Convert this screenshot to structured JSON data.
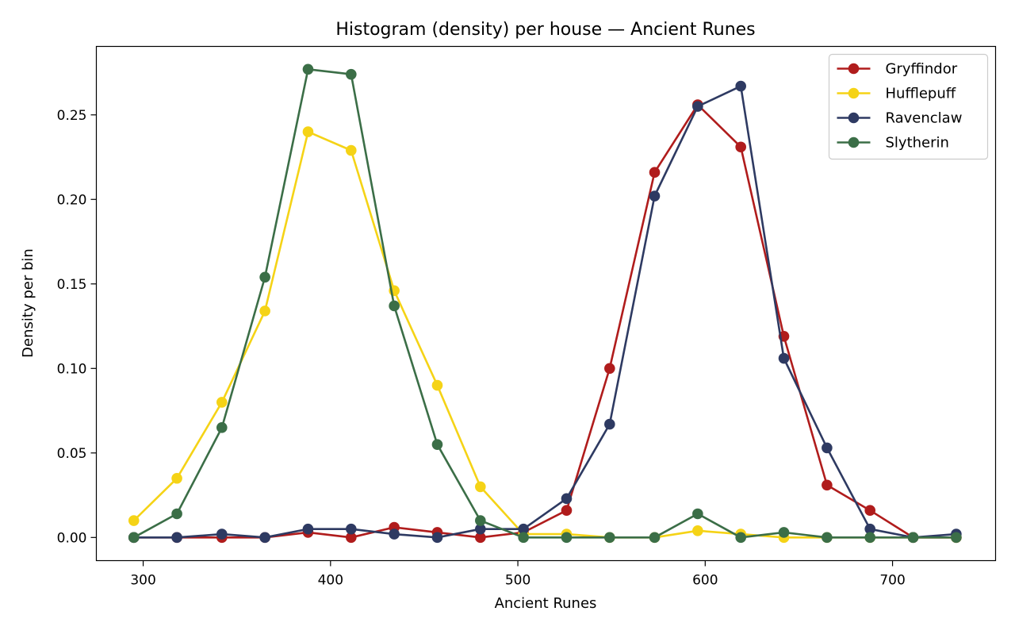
{
  "chart_data": {
    "type": "line",
    "title": "Histogram (density) per house — Ancient Runes",
    "xlabel": "Ancient Runes",
    "ylabel": "Density per bin",
    "xlim": [
      275,
      755
    ],
    "ylim": [
      -0.0137,
      0.2905
    ],
    "xticks": [
      300,
      400,
      500,
      600,
      700
    ],
    "yticks": [
      0.0,
      0.05,
      0.1,
      0.15,
      0.2,
      0.25
    ],
    "ytick_labels": [
      "0.00",
      "0.05",
      "0.10",
      "0.15",
      "0.20",
      "0.25"
    ],
    "xtick_labels": [
      "300",
      "400",
      "500",
      "600",
      "700"
    ],
    "grid": false,
    "legend_position": "top-right",
    "x": [
      295,
      318,
      342,
      365,
      388,
      411,
      434,
      457,
      480,
      503,
      526,
      549,
      573,
      596,
      619,
      642,
      665,
      688,
      711,
      734
    ],
    "series": [
      {
        "name": "Gryffindor",
        "color": "#b01c1c",
        "values": [
          0.0,
          0.0,
          0.0,
          0.0,
          0.003,
          0.0,
          0.006,
          0.003,
          0.0,
          0.003,
          0.016,
          0.1,
          0.216,
          0.256,
          0.231,
          0.119,
          0.031,
          0.016,
          0.0,
          0.0
        ]
      },
      {
        "name": "Hufflepuff",
        "color": "#f5d316",
        "values": [
          0.01,
          0.035,
          0.08,
          0.134,
          0.24,
          0.229,
          0.146,
          0.09,
          0.03,
          0.002,
          0.002,
          0.0,
          0.0,
          0.004,
          0.002,
          0.0,
          0.0,
          0.0,
          0.0,
          0.0
        ]
      },
      {
        "name": "Ravenclaw",
        "color": "#2e3a62",
        "values": [
          0.0,
          0.0,
          0.002,
          0.0,
          0.005,
          0.005,
          0.002,
          0.0,
          0.005,
          0.005,
          0.023,
          0.067,
          0.202,
          0.255,
          0.267,
          0.106,
          0.053,
          0.005,
          0.0,
          0.002
        ]
      },
      {
        "name": "Slytherin",
        "color": "#3b6e47",
        "values": [
          0.0,
          0.014,
          0.065,
          0.154,
          0.277,
          0.274,
          0.137,
          0.055,
          0.01,
          0.0,
          0.0,
          0.0,
          0.0,
          0.014,
          0.0,
          0.003,
          0.0,
          0.0,
          0.0,
          0.0
        ]
      }
    ]
  }
}
